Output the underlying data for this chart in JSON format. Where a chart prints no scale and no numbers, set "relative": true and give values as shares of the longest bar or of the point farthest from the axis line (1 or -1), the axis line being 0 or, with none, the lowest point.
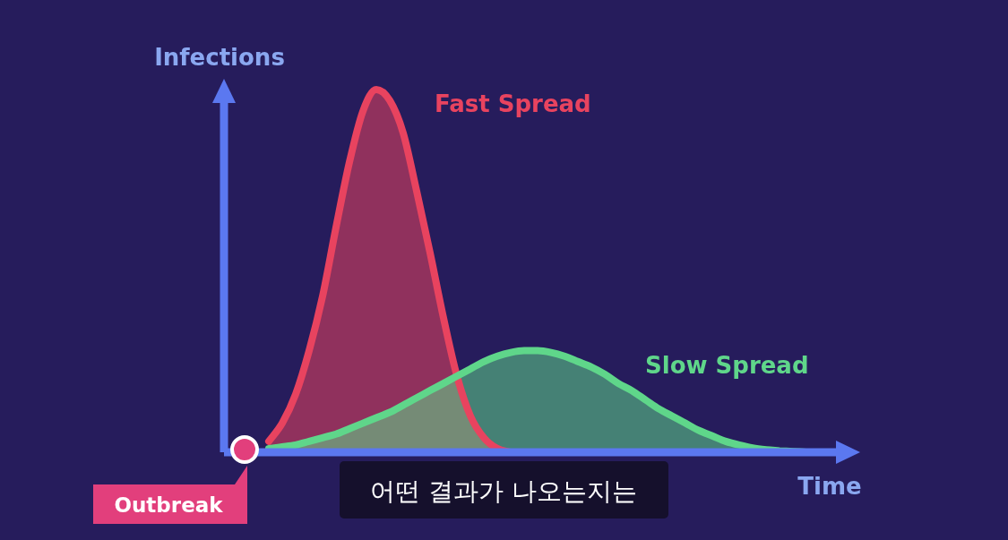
{
  "chart_data": {
    "type": "area",
    "relative": true,
    "xlabel": "Time",
    "ylabel": "Infections",
    "categories": [
      null,
      null,
      null,
      null,
      null,
      null,
      null,
      null,
      null,
      null,
      null,
      null,
      null,
      null,
      null,
      null,
      null,
      null,
      null,
      null,
      null,
      null,
      null,
      null,
      null,
      null,
      null,
      null,
      null,
      null,
      null,
      null,
      null,
      null,
      null,
      null,
      null,
      null,
      null,
      null,
      null,
      null,
      null
    ],
    "series": [
      {
        "name": "Fast Spread",
        "color": "#e8435f",
        "values": [
          null,
          null,
          0.03,
          0.08,
          0.16,
          0.28,
          0.43,
          0.62,
          0.8,
          0.94,
          1,
          0.97,
          0.88,
          0.72,
          0.55,
          0.37,
          0.21,
          0.1,
          0.04,
          0.01,
          0,
          null,
          null,
          null,
          null,
          null,
          null,
          null,
          null,
          null,
          null,
          null,
          null,
          null,
          null,
          null,
          null,
          null,
          null,
          null,
          null,
          null,
          null
        ]
      },
      {
        "name": "Slow Spread",
        "color": "#5fd68a",
        "values": [
          null,
          null,
          0.01,
          0.015,
          0.02,
          0.03,
          0.04,
          0.05,
          0.065,
          0.08,
          0.095,
          0.11,
          0.13,
          0.15,
          0.17,
          0.19,
          0.21,
          0.23,
          0.25,
          0.265,
          0.275,
          0.28,
          0.28,
          0.275,
          0.265,
          0.25,
          0.235,
          0.215,
          0.19,
          0.17,
          0.145,
          0.12,
          0.1,
          0.08,
          0.06,
          0.045,
          0.03,
          0.02,
          0.012,
          0.007,
          0.004,
          0.002,
          0
        ]
      }
    ],
    "annotations": [
      "Outbreak",
      "어떤 결과가 나오는지는"
    ]
  }
}
